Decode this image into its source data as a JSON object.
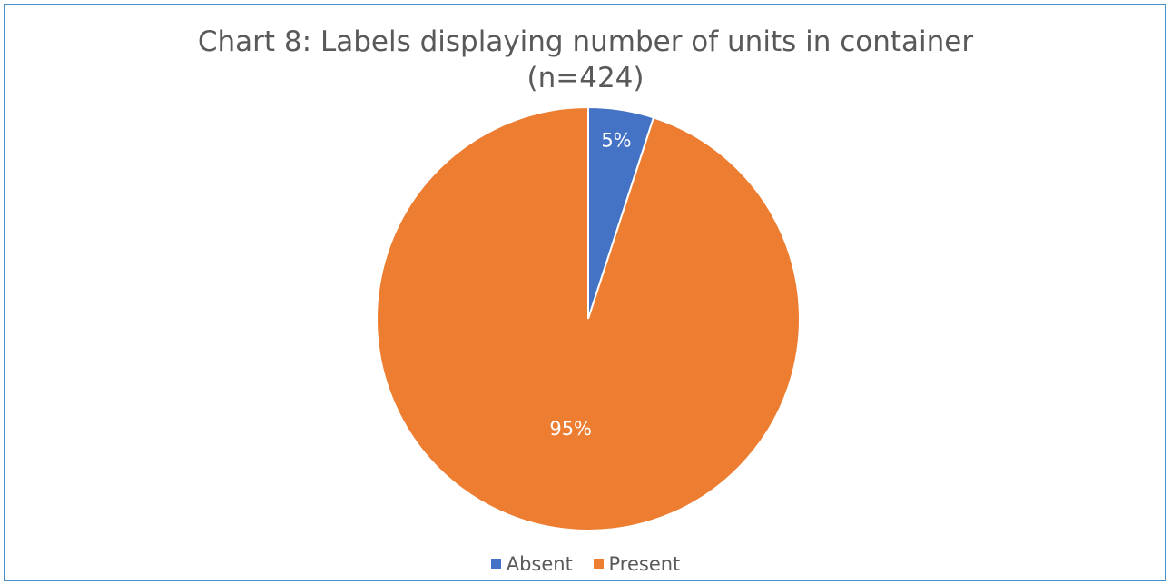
{
  "chart_data": {
    "type": "pie",
    "title": "Chart 8: Labels displaying number of units in container",
    "subtitle": "(n=424)",
    "categories": [
      "Absent",
      "Present"
    ],
    "values": [
      5,
      95
    ],
    "data_labels": [
      "5%",
      "95%"
    ],
    "colors": [
      "#4472C4",
      "#ED7D31"
    ],
    "legend_position": "bottom"
  }
}
